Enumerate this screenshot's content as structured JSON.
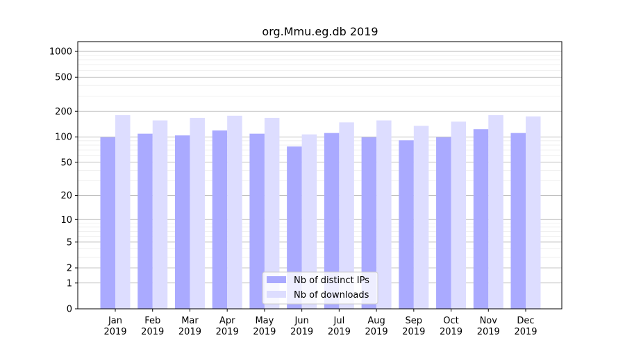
{
  "chart_data": {
    "type": "bar",
    "title": "org.Mmu.eg.db 2019",
    "xlabel": "",
    "ylabel": "",
    "scale": "log(1+y)",
    "ylim": [
      0,
      1300
    ],
    "yticks": [
      0,
      1,
      2,
      5,
      10,
      20,
      50,
      100,
      200,
      500,
      1000
    ],
    "ytick_labels": [
      "0",
      "1",
      "2",
      "5",
      "10",
      "20",
      "50",
      "100",
      "200",
      "500",
      "1000"
    ],
    "categories": [
      {
        "month": "Jan",
        "year": "2019"
      },
      {
        "month": "Feb",
        "year": "2019"
      },
      {
        "month": "Mar",
        "year": "2019"
      },
      {
        "month": "Apr",
        "year": "2019"
      },
      {
        "month": "May",
        "year": "2019"
      },
      {
        "month": "Jun",
        "year": "2019"
      },
      {
        "month": "Jul",
        "year": "2019"
      },
      {
        "month": "Aug",
        "year": "2019"
      },
      {
        "month": "Sep",
        "year": "2019"
      },
      {
        "month": "Oct",
        "year": "2019"
      },
      {
        "month": "Nov",
        "year": "2019"
      },
      {
        "month": "Dec",
        "year": "2019"
      }
    ],
    "series": [
      {
        "name": "Nb of distinct IPs",
        "color": "#aaaaff",
        "values": [
          99,
          109,
          104,
          119,
          109,
          77,
          111,
          99,
          91,
          99,
          123,
          111
        ]
      },
      {
        "name": "Nb of downloads",
        "color": "#ddddff",
        "values": [
          180,
          156,
          167,
          177,
          167,
          107,
          148,
          156,
          135,
          151,
          180,
          174
        ]
      }
    ],
    "grid": "horizontal",
    "legend_position": "bottom-center"
  }
}
